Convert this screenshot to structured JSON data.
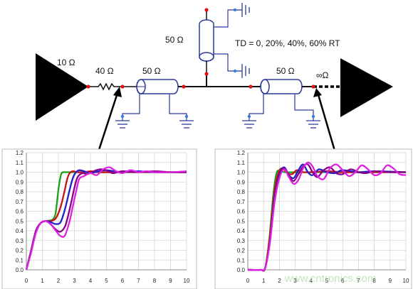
{
  "schematic": {
    "driver_impedance": "10 Ω",
    "series_resistor": "40 Ω",
    "line_left": "50 Ω",
    "stub_line": "50 Ω",
    "line_right": "50 Ω",
    "load_impedance": "∞Ω",
    "td_note": "TD = 0, 20%, 40%, 60% RT"
  },
  "watermark": "www.cntronics.com",
  "colors": {
    "green": "#1aa01a",
    "red": "#cc1111",
    "blue": "#2222cc",
    "purple": "#880088",
    "magenta": "#e020e0"
  },
  "chart_data": [
    {
      "type": "line",
      "name": "left-plot",
      "x_ticks": [
        "0",
        "1",
        "2",
        "3",
        "4",
        "5",
        "6",
        "7",
        "8",
        "9",
        "10"
      ],
      "y_ticks": [
        "0.0",
        "0.1",
        "0.2",
        "0.3",
        "0.4",
        "0.5",
        "0.6",
        "0.7",
        "0.8",
        "0.9",
        "1.0",
        "1.1",
        "1.2"
      ],
      "xlim": [
        0,
        10
      ],
      "ylim": [
        0,
        1.2
      ],
      "grid": true,
      "series": [
        {
          "color": "green",
          "x": [
            0,
            0.3,
            0.6,
            0.9,
            1.2,
            1.6,
            1.8,
            1.9,
            2.0,
            2.1,
            2.2,
            2.35,
            2.5,
            2.8,
            3.5,
            4.5,
            6,
            8,
            10
          ],
          "y": [
            0,
            0.2,
            0.4,
            0.48,
            0.5,
            0.51,
            0.56,
            0.68,
            0.82,
            0.93,
            0.99,
            1.0,
            1.0,
            1.0,
            1.0,
            1.0,
            1.0,
            1.0,
            1.0
          ]
        },
        {
          "color": "red",
          "x": [
            0,
            0.3,
            0.6,
            0.9,
            1.2,
            1.5,
            1.8,
            2.0,
            2.2,
            2.4,
            2.55,
            2.7,
            2.9,
            3.2,
            3.6,
            4.0,
            4.5,
            5.5,
            7,
            8.5,
            10
          ],
          "y": [
            0,
            0.2,
            0.4,
            0.48,
            0.5,
            0.5,
            0.52,
            0.58,
            0.68,
            0.82,
            0.93,
            0.99,
            1.01,
            1.0,
            1.0,
            1.01,
            1.0,
            1.0,
            1.0,
            1.0,
            1.0
          ]
        },
        {
          "color": "blue",
          "x": [
            0,
            0.3,
            0.6,
            0.9,
            1.2,
            1.5,
            1.8,
            2.1,
            2.3,
            2.5,
            2.7,
            2.9,
            3.1,
            3.3,
            3.6,
            4.0,
            4.5,
            5.0,
            6,
            7,
            8,
            10
          ],
          "y": [
            0,
            0.2,
            0.4,
            0.48,
            0.5,
            0.49,
            0.47,
            0.48,
            0.56,
            0.68,
            0.82,
            0.94,
            1.0,
            1.02,
            1.01,
            0.99,
            1.01,
            1.02,
            1.0,
            1.01,
            1.0,
            1.0
          ]
        },
        {
          "color": "purple",
          "x": [
            0,
            0.3,
            0.6,
            0.9,
            1.2,
            1.5,
            1.8,
            2.1,
            2.4,
            2.6,
            2.8,
            3.0,
            3.2,
            3.5,
            3.8,
            4.2,
            4.6,
            5.0,
            5.4,
            6,
            7,
            8,
            9,
            10
          ],
          "y": [
            0,
            0.2,
            0.4,
            0.48,
            0.5,
            0.47,
            0.42,
            0.39,
            0.44,
            0.55,
            0.69,
            0.84,
            0.95,
            0.99,
            0.98,
            1.01,
            1.03,
            1.02,
            0.99,
            1.01,
            1.0,
            1.01,
            1.0,
            1.0
          ]
        },
        {
          "color": "magenta",
          "x": [
            0,
            0.3,
            0.6,
            0.9,
            1.2,
            1.5,
            1.8,
            2.1,
            2.4,
            2.7,
            2.9,
            3.1,
            3.3,
            3.6,
            4.0,
            4.4,
            4.8,
            5.2,
            5.6,
            6.0,
            6.5,
            7,
            7.5,
            8,
            9,
            10
          ],
          "y": [
            0,
            0.18,
            0.38,
            0.48,
            0.5,
            0.47,
            0.41,
            0.35,
            0.35,
            0.5,
            0.65,
            0.8,
            0.93,
            0.96,
            0.99,
            0.97,
            1.03,
            1.05,
            1.01,
            0.99,
            1.02,
            1.0,
            1.01,
            1.0,
            1.0,
            1.01
          ]
        }
      ]
    },
    {
      "type": "line",
      "name": "right-plot",
      "x_ticks": [
        "0",
        "1",
        "2",
        "3",
        "4",
        "5",
        "6",
        "7",
        "8",
        "9",
        "10"
      ],
      "y_ticks": [
        "0.0",
        "0.1",
        "0.2",
        "0.3",
        "0.4",
        "0.5",
        "0.6",
        "0.7",
        "0.8",
        "0.9",
        "1.0",
        "1.1",
        "1.2"
      ],
      "xlim": [
        0,
        10
      ],
      "ylim": [
        0,
        1.2
      ],
      "grid": true,
      "series": [
        {
          "color": "green",
          "x": [
            0,
            0.8,
            1.1,
            1.35,
            1.6,
            1.8,
            2.0,
            2.3,
            3,
            4,
            5,
            6,
            7,
            8,
            10
          ],
          "y": [
            0,
            0,
            0.02,
            0.3,
            0.75,
            0.98,
            1.02,
            1.0,
            1.0,
            1.0,
            1.0,
            1.0,
            1.0,
            1.0,
            1.0
          ]
        },
        {
          "color": "red",
          "x": [
            0,
            0.8,
            1.1,
            1.4,
            1.7,
            1.95,
            2.2,
            2.5,
            2.8,
            3.1,
            3.5,
            4,
            5,
            6,
            7,
            8,
            10
          ],
          "y": [
            0,
            0,
            0.02,
            0.35,
            0.82,
            1.0,
            1.04,
            0.99,
            0.98,
            1.02,
            1.0,
            1.0,
            1.01,
            1.0,
            1.0,
            1.0,
            1.0
          ]
        },
        {
          "color": "blue",
          "x": [
            0,
            0.8,
            1.1,
            1.4,
            1.7,
            2.0,
            2.3,
            2.6,
            2.9,
            3.2,
            3.5,
            3.8,
            4.1,
            4.5,
            5,
            5.5,
            6,
            7,
            8,
            10
          ],
          "y": [
            0,
            0,
            0.02,
            0.3,
            0.75,
            0.98,
            1.05,
            0.97,
            0.94,
            1.02,
            1.08,
            1.0,
            0.97,
            1.03,
            1.0,
            0.99,
            1.02,
            1.0,
            1.01,
            1.0
          ]
        },
        {
          "color": "purple",
          "x": [
            0,
            0.8,
            1.1,
            1.4,
            1.7,
            2.0,
            2.3,
            2.6,
            2.9,
            3.2,
            3.5,
            3.8,
            4.1,
            4.4,
            4.8,
            5.2,
            5.6,
            6,
            6.5,
            7,
            7.5,
            8,
            9,
            10
          ],
          "y": [
            0,
            0,
            0.02,
            0.3,
            0.72,
            0.96,
            1.04,
            0.96,
            0.91,
            0.98,
            1.06,
            1.08,
            1.0,
            0.95,
            1.02,
            1.05,
            0.99,
            0.98,
            1.03,
            1.0,
            0.99,
            1.01,
            1.0,
            1.0
          ]
        },
        {
          "color": "magenta",
          "x": [
            0,
            0.8,
            1.1,
            1.4,
            1.7,
            2.0,
            2.3,
            2.6,
            2.9,
            3.2,
            3.5,
            3.8,
            4.1,
            4.4,
            4.8,
            5.2,
            5.6,
            6.0,
            6.4,
            6.8,
            7.2,
            7.6,
            8.0,
            8.4,
            8.8,
            9.2,
            9.6,
            10
          ],
          "y": [
            0,
            0,
            0.02,
            0.28,
            0.7,
            0.94,
            1.03,
            0.95,
            0.88,
            0.92,
            1.04,
            1.1,
            1.06,
            0.96,
            0.93,
            1.04,
            1.08,
            1.02,
            0.96,
            1.0,
            1.07,
            1.03,
            0.97,
            0.99,
            1.07,
            1.04,
            0.98,
            0.97
          ]
        }
      ]
    }
  ]
}
